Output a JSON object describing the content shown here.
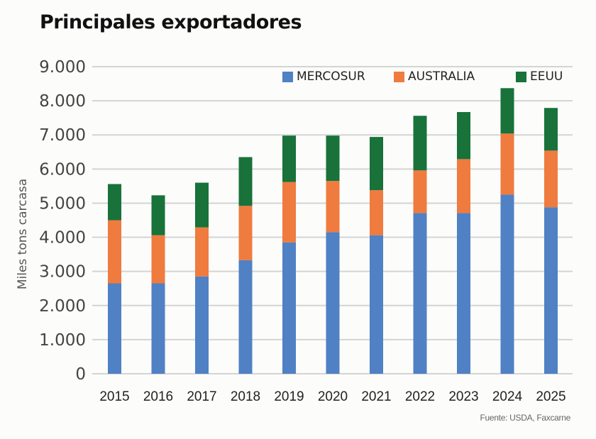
{
  "chart_data": {
    "type": "bar",
    "stacked": true,
    "title": "Principales exportadores",
    "xlabel": "",
    "ylabel": "Miles tons carcasa",
    "ylim": [
      0,
      9000
    ],
    "yticks": [
      0,
      1000,
      2000,
      3000,
      4000,
      5000,
      6000,
      7000,
      8000,
      9000
    ],
    "ytick_labels": [
      "0",
      "1.000",
      "2.000",
      "3.000",
      "4.000",
      "5.000",
      "6.000",
      "7.000",
      "8.000",
      "9.000"
    ],
    "grid": true,
    "legend_position": "top-right",
    "categories": [
      "2015",
      "2016",
      "2017",
      "2018",
      "2019",
      "2020",
      "2021",
      "2022",
      "2023",
      "2024",
      "2025"
    ],
    "series": [
      {
        "name": "MERCOSUR",
        "color": "#4f81c4",
        "values": [
          2650,
          2650,
          2850,
          3330,
          3850,
          4150,
          4060,
          4710,
          4710,
          5250,
          4880
        ]
      },
      {
        "name": "AUSTRALIA",
        "color": "#ef7b3e",
        "values": [
          1850,
          1410,
          1440,
          1590,
          1770,
          1500,
          1320,
          1250,
          1580,
          1790,
          1660
        ]
      },
      {
        "name": "EEUU",
        "color": "#18723a",
        "values": [
          1060,
          1170,
          1310,
          1430,
          1360,
          1330,
          1560,
          1600,
          1380,
          1330,
          1250
        ]
      }
    ],
    "source": "Fuente: USDA, Faxcarne"
  }
}
